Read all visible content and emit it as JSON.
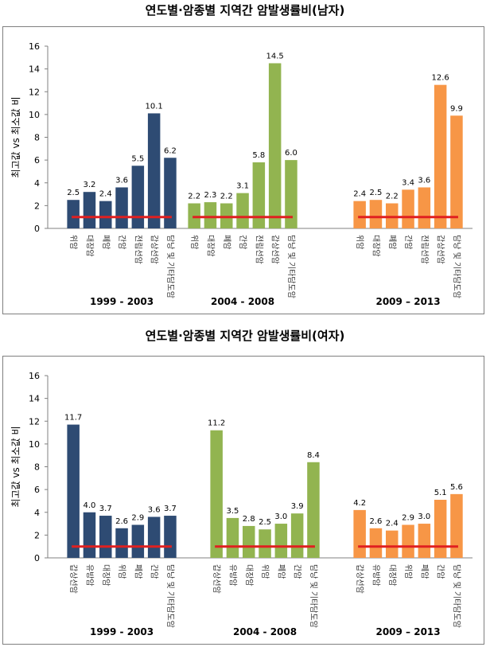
{
  "chart_data": [
    {
      "type": "bar",
      "title": "연도별·암종별 지역간 암발생률비(남자)",
      "ylabel": "최고값 vs 최소값 비",
      "ylim": [
        0,
        16
      ],
      "yticks": [
        0,
        2,
        4,
        6,
        8,
        10,
        12,
        14,
        16
      ],
      "reference_line": 1,
      "groups": [
        {
          "period": "1999 - 2003",
          "color": "#2e4b73",
          "categories": [
            "위암",
            "대장암",
            "폐암",
            "간암",
            "전립선암",
            "갑상선암",
            "담낭 및 기타담도암"
          ],
          "values": [
            2.5,
            3.2,
            2.4,
            3.6,
            5.5,
            10.1,
            6.2
          ]
        },
        {
          "period": "2004 - 2008",
          "color": "#92b450",
          "categories": [
            "위암",
            "대장암",
            "폐암",
            "간암",
            "전립선암",
            "갑상선암",
            "담낭 및 기타담도암"
          ],
          "values": [
            2.2,
            2.3,
            2.2,
            3.1,
            5.8,
            14.5,
            6.0
          ]
        },
        {
          "period": "2009 – 2013",
          "color": "#f79646",
          "categories": [
            "위암",
            "대장암",
            "폐암",
            "간암",
            "전립선암",
            "갑상선암",
            "담낭 및 기타담도암"
          ],
          "values": [
            2.4,
            2.5,
            2.2,
            3.4,
            3.6,
            12.6,
            9.9
          ]
        }
      ]
    },
    {
      "type": "bar",
      "title": "연도별·암종별 지역간 암발생률비(여자)",
      "ylabel": "최고값 vs 최소값 비",
      "ylim": [
        0,
        16
      ],
      "yticks": [
        0,
        2,
        4,
        6,
        8,
        10,
        12,
        14,
        16
      ],
      "reference_line": 1,
      "groups": [
        {
          "period": "1999 - 2003",
          "color": "#2e4b73",
          "categories": [
            "갑상선암",
            "유방암",
            "대장암",
            "위암",
            "폐암",
            "간암",
            "담낭 및 기타담도암"
          ],
          "values": [
            11.7,
            4.0,
            3.7,
            2.6,
            2.9,
            3.6,
            3.7
          ]
        },
        {
          "period": "2004 - 2008",
          "color": "#92b450",
          "categories": [
            "갑상선암",
            "유방암",
            "대장암",
            "위암",
            "폐암",
            "간암",
            "담낭 및 기타담도암"
          ],
          "values": [
            11.2,
            3.5,
            2.8,
            2.5,
            3.0,
            3.9,
            8.4
          ]
        },
        {
          "period": "2009 – 2013",
          "color": "#f79646",
          "categories": [
            "갑상선암",
            "유방암",
            "대장암",
            "위암",
            "폐암",
            "간암",
            "담낭 및 기타담도암"
          ],
          "values": [
            4.2,
            2.6,
            2.4,
            2.9,
            3.0,
            5.1,
            5.6
          ]
        }
      ]
    }
  ],
  "reference_line_color": "#e02020"
}
